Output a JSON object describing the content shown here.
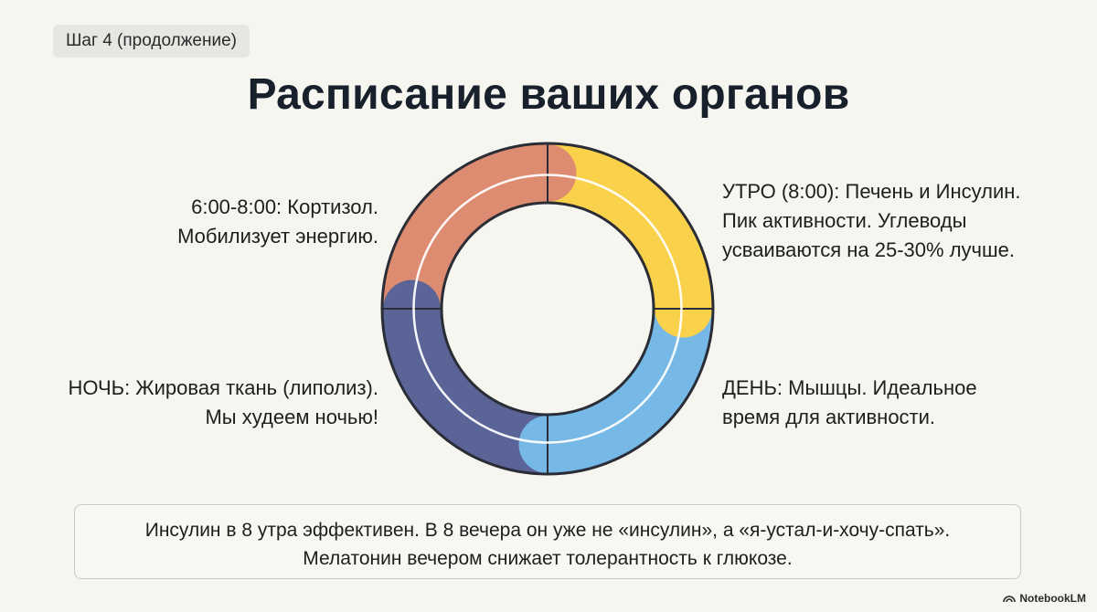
{
  "step": "Шаг 4 (продолжение)",
  "title": "Расписание ваших органов",
  "cycle": {
    "segments": [
      {
        "name": "morning",
        "color": "#fad14a"
      },
      {
        "name": "day",
        "color": "#76b8e6"
      },
      {
        "name": "night",
        "color": "#5b6496"
      },
      {
        "name": "early-morning",
        "color": "#de8c71"
      }
    ],
    "outline_color": "#2a2d36",
    "inner_line_color": "#ffffff"
  },
  "labels": {
    "early_morning": [
      "6:00-8:00: Кортизол.",
      "Мобилизует энергию."
    ],
    "morning": [
      "УТРО (8:00): Печень и Инсулин.",
      "Пик активности. Углеводы",
      "усваиваются на 25-30% лучше."
    ],
    "day": [
      "ДЕНЬ: Мышцы. Идеальное",
      "время для активности."
    ],
    "night": [
      "НОЧЬ: Жировая ткань (липолиз).",
      "Мы худеем ночью!"
    ]
  },
  "note": {
    "line1": "Инсулин в 8 утра эффективен. В 8 вечера он уже не «инсулин», а «я-устал-и-хочу-спать».",
    "line2": "Мелатонин вечером снижает толерантность к глюкозе."
  },
  "brand": "NotebookLM"
}
